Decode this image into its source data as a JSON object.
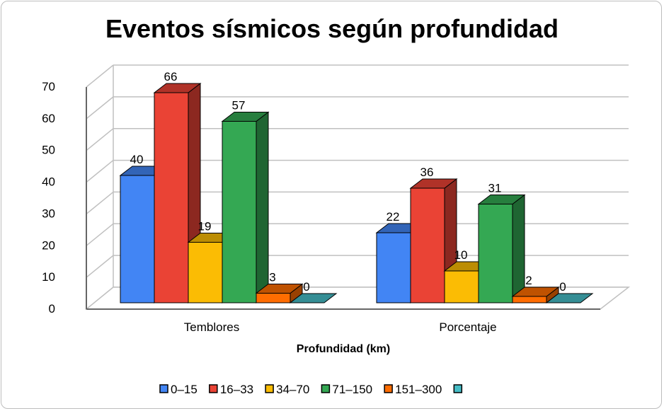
{
  "chart_data": {
    "type": "bar",
    "title": "Eventos sísmicos según profundidad",
    "xlabel": "Profundidad (km)",
    "ylabel": "",
    "ylim": [
      0,
      70
    ],
    "yticks": [
      0,
      10,
      20,
      30,
      40,
      50,
      60,
      70
    ],
    "grid": true,
    "three_d": true,
    "legend_position": "bottom",
    "categories": [
      "Temblores",
      "Porcentaje"
    ],
    "series": [
      {
        "name": "0–15",
        "values": [
          40,
          22
        ],
        "color": "#4285f4"
      },
      {
        "name": "16–33",
        "values": [
          66,
          36
        ],
        "color": "#ea4335"
      },
      {
        "name": "34–70",
        "values": [
          19,
          10
        ],
        "color": "#fbbc04"
      },
      {
        "name": "71–150",
        "values": [
          57,
          31
        ],
        "color": "#34a853"
      },
      {
        "name": "151–300",
        "values": [
          3,
          2
        ],
        "color": "#ff6d01"
      },
      {
        "name": "",
        "values": [
          0,
          0
        ],
        "color": "#46bdc6"
      }
    ]
  }
}
